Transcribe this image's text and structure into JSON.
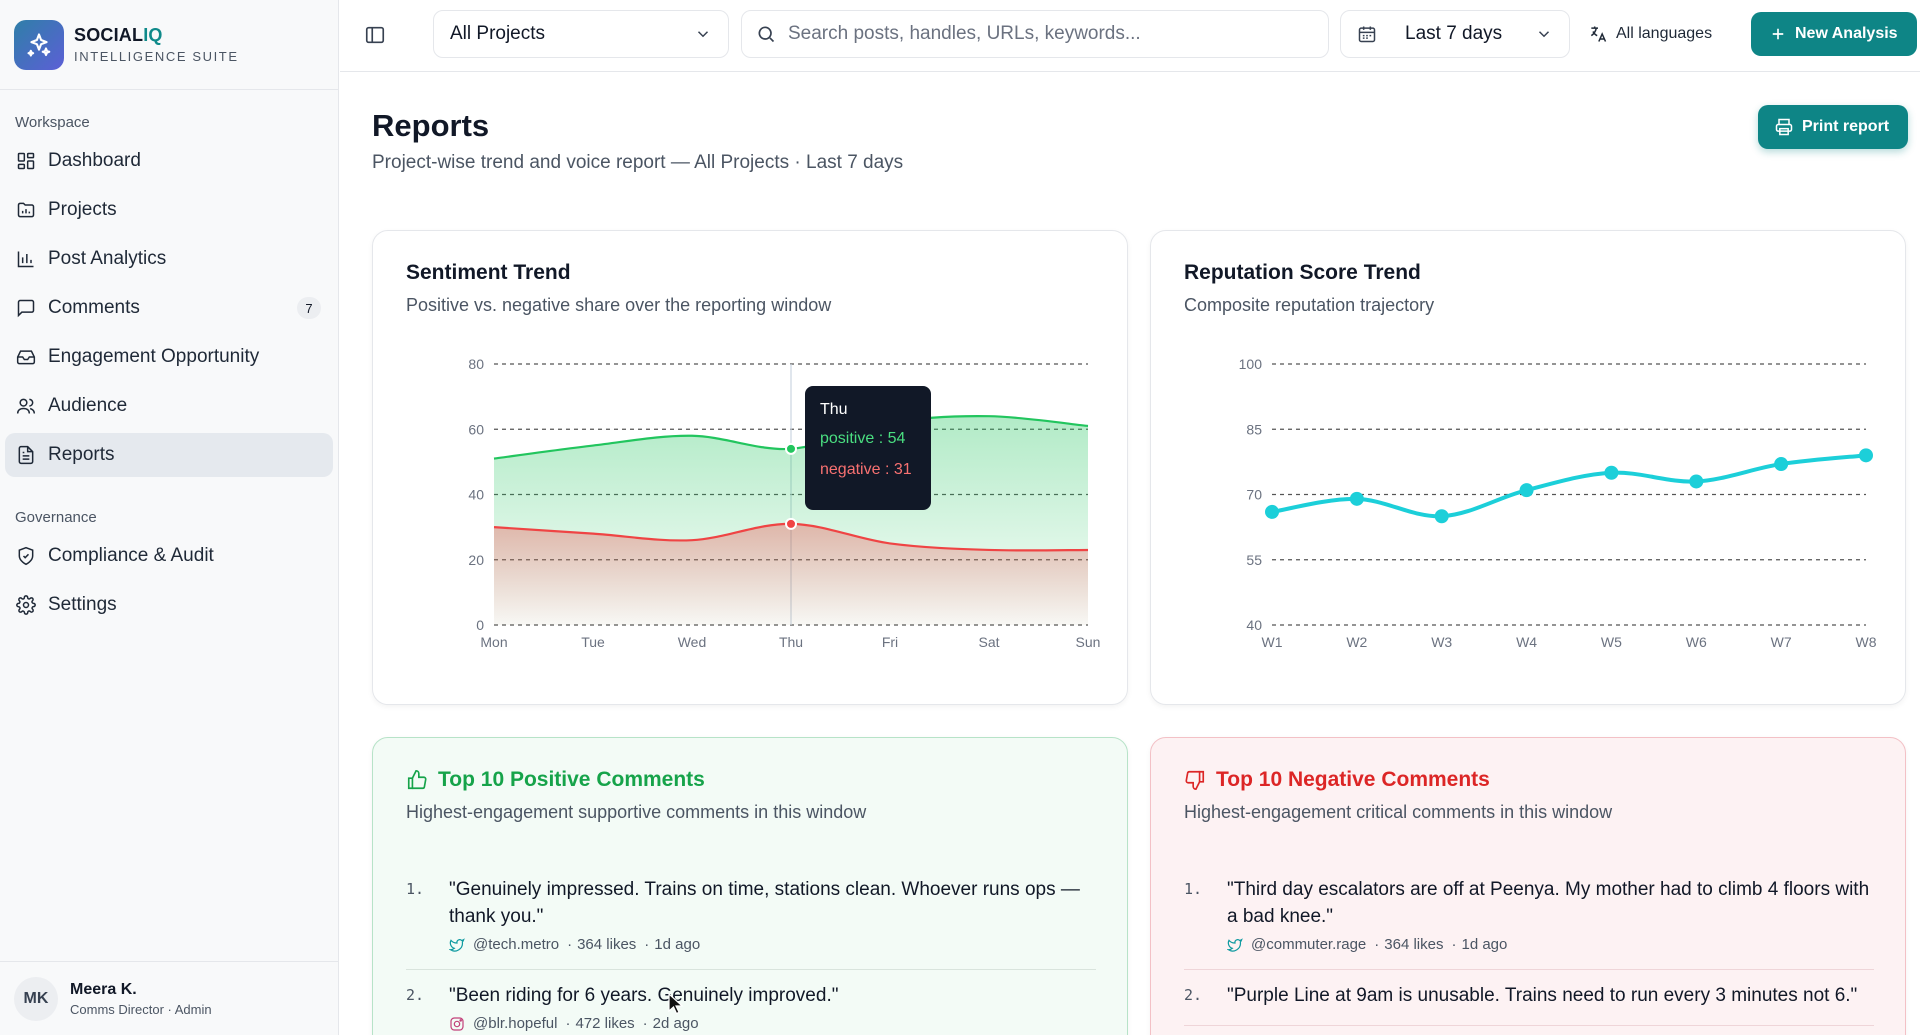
{
  "brand": {
    "name_a": "SOCIAL",
    "name_b": "IQ",
    "sub": "INTELLIGENCE SUITE"
  },
  "sidebar": {
    "sections": [
      "Workspace",
      "Governance"
    ],
    "workspace_items": [
      {
        "label": "Dashboard",
        "icon": "dashboard-icon"
      },
      {
        "label": "Projects",
        "icon": "folder-chart-icon"
      },
      {
        "label": "Post Analytics",
        "icon": "bar-chart-icon"
      },
      {
        "label": "Comments",
        "icon": "message-icon",
        "badge": "7"
      },
      {
        "label": "Engagement Opportunity",
        "icon": "inbox-icon"
      },
      {
        "label": "Audience",
        "icon": "users-icon"
      },
      {
        "label": "Reports",
        "icon": "file-text-icon",
        "active": true
      }
    ],
    "governance_items": [
      {
        "label": "Compliance & Audit",
        "icon": "shield-check-icon"
      },
      {
        "label": "Settings",
        "icon": "gear-icon"
      }
    ]
  },
  "user": {
    "initials": "MK",
    "name": "Meera K.",
    "role": "Comms Director · Admin"
  },
  "topbar": {
    "project": "All Projects",
    "search_placeholder": "Search posts, handles, URLs, keywords...",
    "date_range": "Last 7 days",
    "language": "All languages",
    "new_analysis": "New Analysis"
  },
  "page": {
    "title": "Reports",
    "subtitle": "Project-wise trend and voice report — All Projects · Last 7 days",
    "print_label": "Print report"
  },
  "charts": {
    "sentiment": {
      "title": "Sentiment Trend",
      "subtitle": "Positive vs. negative share over the reporting window"
    },
    "reputation": {
      "title": "Reputation Score Trend",
      "subtitle": "Composite reputation trajectory"
    }
  },
  "tooltip": {
    "day": "Thu",
    "positive": "positive : 54",
    "negative": "negative : 31"
  },
  "chart_data": [
    {
      "type": "area",
      "title": "Sentiment Trend",
      "categories": [
        "Mon",
        "Tue",
        "Wed",
        "Thu",
        "Fri",
        "Sat",
        "Sun"
      ],
      "series": [
        {
          "name": "positive",
          "values": [
            51,
            55,
            58,
            54,
            62,
            64,
            61
          ],
          "color": "#22c55e"
        },
        {
          "name": "negative",
          "values": [
            30,
            28,
            26,
            31,
            25,
            23,
            23
          ],
          "color": "#ef4444"
        }
      ],
      "yticks": [
        0,
        20,
        40,
        60,
        80
      ],
      "ylim": [
        0,
        80
      ],
      "grid": true
    },
    {
      "type": "line",
      "title": "Reputation Score Trend",
      "categories": [
        "W1",
        "W2",
        "W3",
        "W4",
        "W5",
        "W6",
        "W7",
        "W8"
      ],
      "series": [
        {
          "name": "score",
          "values": [
            66,
            69,
            65,
            71,
            75,
            73,
            77,
            79
          ],
          "color": "#1ccfd9"
        }
      ],
      "yticks": [
        40,
        55,
        70,
        85,
        100
      ],
      "ylim": [
        40,
        100
      ],
      "grid": true
    }
  ],
  "positive": {
    "title": "Top 10 Positive Comments",
    "subtitle": "Highest-engagement supportive comments in this window",
    "items": [
      {
        "num": "1.",
        "text": "\"Genuinely impressed. Trains on time, stations clean. Whoever runs ops — thank you.\"",
        "platform": "twitter-icon",
        "handle": "@tech.metro",
        "likes": "364 likes",
        "age": "1d ago"
      },
      {
        "num": "2.",
        "text": "\"Been riding for 6 years. Genuinely improved.\"",
        "platform": "instagram-icon",
        "handle": "@blr.hopeful",
        "likes": "472 likes",
        "age": "2d ago"
      }
    ]
  },
  "negative": {
    "title": "Top 10 Negative Comments",
    "subtitle": "Highest-engagement critical comments in this window",
    "items": [
      {
        "num": "1.",
        "text": "\"Third day escalators are off at Peenya. My mother had to climb 4 floors with a bad knee.\"",
        "platform": "twitter-icon",
        "handle": "@commuter.rage",
        "likes": "364 likes",
        "age": "1d ago"
      },
      {
        "num": "2.",
        "text": "\"Purple Line at 9am is unusable. Trains need to run every 3 minutes not 6.\"",
        "platform": "twitter-icon",
        "handle": "",
        "likes": "",
        "age": ""
      }
    ]
  }
}
